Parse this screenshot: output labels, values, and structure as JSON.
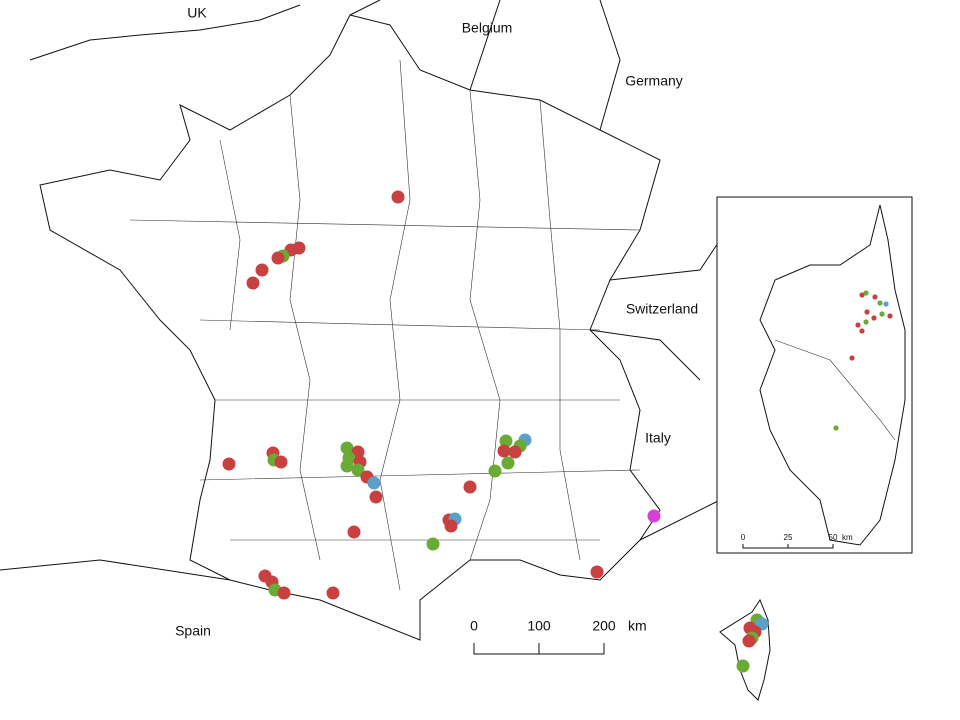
{
  "labels": {
    "uk": "UK",
    "belgium": "Belgium",
    "germany": "Germany",
    "switzerland": "Switzerland",
    "italy": "Italy",
    "spain": "Spain"
  },
  "scale_bar": {
    "ticks": [
      0,
      100,
      200
    ],
    "unit": "km"
  },
  "inset_scale_bar": {
    "ticks": [
      0,
      25,
      50
    ],
    "unit": "km"
  }
}
